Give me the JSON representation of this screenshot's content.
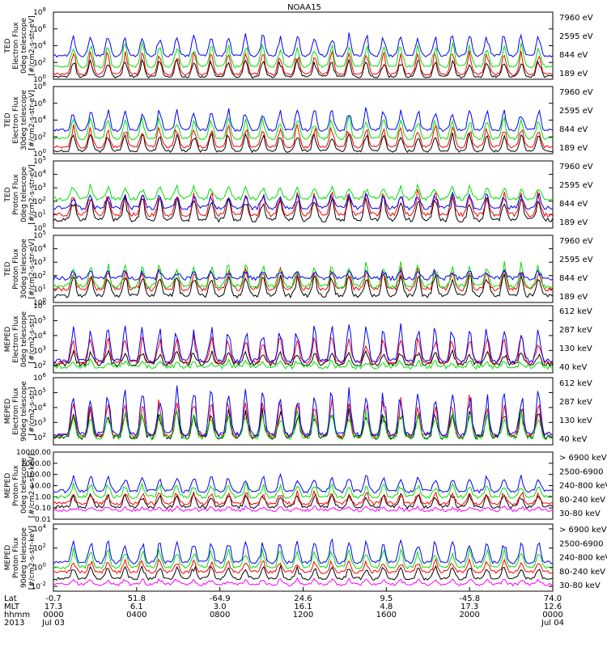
{
  "title": "NOAA15",
  "colors": {
    "black": "#000000",
    "red": "#ff0000",
    "green": "#00e000",
    "blue": "#0000ff",
    "magenta": "#ff00ff"
  },
  "chart_data": [
    {
      "type": "line",
      "ylabel": [
        "TED",
        "Electron Flux",
        "0deg telescope",
        "[#/cm2-s-str-eV]"
      ],
      "ylim_exp": [
        0,
        8
      ],
      "ticks": [
        {
          "label": "10",
          "exp": "0",
          "e": 0
        },
        {
          "label": "10",
          "exp": "2",
          "e": 2
        },
        {
          "label": "10",
          "exp": "4",
          "e": 4
        },
        {
          "label": "10",
          "exp": "6",
          "e": 6
        },
        {
          "label": "10",
          "exp": "8",
          "e": 8
        }
      ],
      "series": [
        {
          "name": "7960 eV",
          "color": "#000000",
          "base": 0.3,
          "peak": 2.5
        },
        {
          "name": "2595 eV",
          "color": "#ff0000",
          "base": 0.6,
          "peak": 3.5
        },
        {
          "name": "844 eV",
          "color": "#00e000",
          "base": 1.5,
          "peak": 4.5
        },
        {
          "name": "189 eV",
          "color": "#0000ff",
          "base": 2.8,
          "peak": 5.5
        }
      ]
    },
    {
      "type": "line",
      "ylabel": [
        "TED",
        "Electron Flux",
        "30deg telescope",
        "[#/cm2-s-str-eV]"
      ],
      "ylim_exp": [
        0,
        8
      ],
      "ticks": [
        {
          "label": "10",
          "exp": "0",
          "e": 0
        },
        {
          "label": "10",
          "exp": "2",
          "e": 2
        },
        {
          "label": "10",
          "exp": "4",
          "e": 4
        },
        {
          "label": "10",
          "exp": "6",
          "e": 6
        },
        {
          "label": "10",
          "exp": "8",
          "e": 8
        }
      ],
      "series": [
        {
          "name": "7960 eV",
          "color": "#000000",
          "base": 0.3,
          "peak": 2.5
        },
        {
          "name": "2595 eV",
          "color": "#ff0000",
          "base": 0.8,
          "peak": 3.5
        },
        {
          "name": "844 eV",
          "color": "#00e000",
          "base": 1.8,
          "peak": 4.5
        },
        {
          "name": "189 eV",
          "color": "#0000ff",
          "base": 2.8,
          "peak": 5.5
        }
      ]
    },
    {
      "type": "line",
      "ylabel": [
        "TED",
        "Proton Flux",
        "0deg telescope",
        "[#/cm2-s-str-eV]"
      ],
      "ylim_exp": [
        0,
        5
      ],
      "ticks": [
        {
          "label": "10",
          "exp": "0",
          "e": 0
        },
        {
          "label": "10",
          "exp": "1",
          "e": 1
        },
        {
          "label": "10",
          "exp": "2",
          "e": 2
        },
        {
          "label": "10",
          "exp": "3",
          "e": 3
        },
        {
          "label": "10",
          "exp": "4",
          "e": 4
        },
        {
          "label": "10",
          "exp": "5",
          "e": 5
        }
      ],
      "series": [
        {
          "name": "7960 eV",
          "color": "#000000",
          "base": 0.6,
          "peak": 2.5
        },
        {
          "name": "2595 eV",
          "color": "#ff0000",
          "base": 1.0,
          "peak": 2.8
        },
        {
          "name": "844 eV",
          "color": "#00e000",
          "base": 2.2,
          "peak": 3.2
        },
        {
          "name": "189 eV",
          "color": "#0000ff",
          "base": 1.5,
          "peak": 2.6
        }
      ]
    },
    {
      "type": "line",
      "ylabel": [
        "TED",
        "Proton Flux",
        "30deg telescope",
        "[#/cm2-s-str-eV]"
      ],
      "ylim_exp": [
        0,
        5
      ],
      "ticks": [
        {
          "label": "10",
          "exp": "0",
          "e": 0
        },
        {
          "label": "10",
          "exp": "1",
          "e": 1
        },
        {
          "label": "10",
          "exp": "2",
          "e": 2
        },
        {
          "label": "10",
          "exp": "3",
          "e": 3
        },
        {
          "label": "10",
          "exp": "4",
          "e": 4
        },
        {
          "label": "10",
          "exp": "5",
          "e": 5
        }
      ],
      "series": [
        {
          "name": "7960 eV",
          "color": "#000000",
          "base": 0.5,
          "peak": 2.2
        },
        {
          "name": "2595 eV",
          "color": "#ff0000",
          "base": 1.0,
          "peak": 2.6
        },
        {
          "name": "844 eV",
          "color": "#00e000",
          "base": 1.2,
          "peak": 3.0
        },
        {
          "name": "189 eV",
          "color": "#0000ff",
          "base": 1.8,
          "peak": 2.4
        }
      ]
    },
    {
      "type": "line",
      "ylabel": [
        "MEPED",
        "Electron Flux",
        "0deg telescope",
        "[#/cm2-s-str]"
      ],
      "ylim_exp": [
        1.5,
        6
      ],
      "ticks": [
        {
          "label": "10",
          "exp": "2",
          "e": 2
        },
        {
          "label": "10",
          "exp": "3",
          "e": 3
        },
        {
          "label": "10",
          "exp": "4",
          "e": 4
        },
        {
          "label": "10",
          "exp": "5",
          "e": 5
        },
        {
          "label": "10",
          "exp": "6",
          "e": 6
        }
      ],
      "series": [
        {
          "name": "612 keV",
          "color": "#000000",
          "base": 2.1,
          "peak": 3.0
        },
        {
          "name": "287 keV",
          "color": "#ff0000",
          "base": 2.2,
          "peak": 4.0
        },
        {
          "name": "130 keV",
          "color": "#00e000",
          "base": 1.9,
          "peak": 2.3
        },
        {
          "name": "40 keV",
          "color": "#0000ff",
          "base": 2.3,
          "peak": 4.8
        }
      ]
    },
    {
      "type": "line",
      "ylabel": [
        "MEPED",
        "Electron Flux",
        "90deg telescope",
        "[#/cm2-s-str]"
      ],
      "ylim_exp": [
        1.5,
        6
      ],
      "ticks": [
        {
          "label": "10",
          "exp": "2",
          "e": 2
        },
        {
          "label": "10",
          "exp": "3",
          "e": 3
        },
        {
          "label": "10",
          "exp": "4",
          "e": 4
        },
        {
          "label": "10",
          "exp": "5",
          "e": 5
        },
        {
          "label": "10",
          "exp": "6",
          "e": 6
        }
      ],
      "series": [
        {
          "name": "612 keV",
          "color": "#000000",
          "base": 2.0,
          "peak": 4.0
        },
        {
          "name": "287 keV",
          "color": "#ff0000",
          "base": 2.1,
          "peak": 4.8
        },
        {
          "name": "130 keV",
          "color": "#00e000",
          "base": 2.0,
          "peak": 3.8
        },
        {
          "name": "40 keV",
          "color": "#0000ff",
          "base": 2.2,
          "peak": 5.4
        }
      ]
    },
    {
      "type": "line",
      "ylabel": [
        "MEPED",
        "Proton Flux",
        "0deg telescope",
        "[#/cm2-s-str-keV]"
      ],
      "ylim_exp": [
        -2,
        4
      ],
      "ticks": [
        {
          "label": "0.01",
          "exp": "",
          "e": -2
        },
        {
          "label": "0.10",
          "exp": "",
          "e": -1
        },
        {
          "label": "1.00",
          "exp": "",
          "e": 0
        },
        {
          "label": "10.00",
          "exp": "",
          "e": 1
        },
        {
          "label": "100.00",
          "exp": "",
          "e": 2
        },
        {
          "label": "1000.00",
          "exp": "",
          "e": 3
        },
        {
          "label": "10000.00",
          "exp": "",
          "e": 4
        }
      ],
      "series": [
        {
          "name": "> 6900 keV",
          "color": "#ff00ff",
          "base": -1.2,
          "peak": -0.9
        },
        {
          "name": "2500-6900",
          "color": "#000000",
          "base": -0.9,
          "peak": 0.3
        },
        {
          "name": "240-800 keV",
          "color": "#ff0000",
          "base": -0.6,
          "peak": 0.5
        },
        {
          "name": "80-240 keV",
          "color": "#00e000",
          "base": 0.0,
          "peak": 1.2
        },
        {
          "name": "30-80 keV",
          "color": "#0000ff",
          "base": 0.5,
          "peak": 2.0
        }
      ]
    },
    {
      "type": "line",
      "ylabel": [
        "MEPED",
        "Proton Flux",
        "90deg telescope",
        "[#/cm2-s-str-keV]"
      ],
      "ylim_exp": [
        -2.5,
        4.5
      ],
      "ticks": [
        {
          "label": "10",
          "exp": "-2",
          "e": -2
        },
        {
          "label": "10",
          "exp": "0",
          "e": 0
        },
        {
          "label": "10",
          "exp": "2",
          "e": 2
        },
        {
          "label": "10",
          "exp": "4",
          "e": 4
        }
      ],
      "series": [
        {
          "name": "> 6900 keV",
          "color": "#ff00ff",
          "base": -1.8,
          "peak": -1.2
        },
        {
          "name": "2500-6900",
          "color": "#000000",
          "base": -1.2,
          "peak": 0.2
        },
        {
          "name": "240-800 keV",
          "color": "#ff0000",
          "base": -0.5,
          "peak": 0.8
        },
        {
          "name": "80-240 keV",
          "color": "#00e000",
          "base": 0.0,
          "peak": 2.0
        },
        {
          "name": "30-80 keV",
          "color": "#0000ff",
          "base": 0.5,
          "peak": 3.0
        }
      ]
    }
  ],
  "xaxis": {
    "row_labels": [
      "Lat",
      "MLT",
      "hhmm",
      "2013"
    ],
    "ticks": [
      {
        "lat": "-0.7",
        "mlt": "17.3",
        "hhmm": "0000",
        "date": "Jul 03"
      },
      {
        "lat": "51.8",
        "mlt": "6.1",
        "hhmm": "0400",
        "date": ""
      },
      {
        "lat": "-64.9",
        "mlt": "3.0",
        "hhmm": "0800",
        "date": ""
      },
      {
        "lat": "24.6",
        "mlt": "16.1",
        "hhmm": "1200",
        "date": ""
      },
      {
        "lat": "9.5",
        "mlt": "4.8",
        "hhmm": "1600",
        "date": ""
      },
      {
        "lat": "-45.8",
        "mlt": "17.3",
        "hhmm": "2000",
        "date": ""
      },
      {
        "lat": "74.0",
        "mlt": "12.6",
        "hhmm": "0000",
        "date": "Jul 04"
      }
    ]
  }
}
